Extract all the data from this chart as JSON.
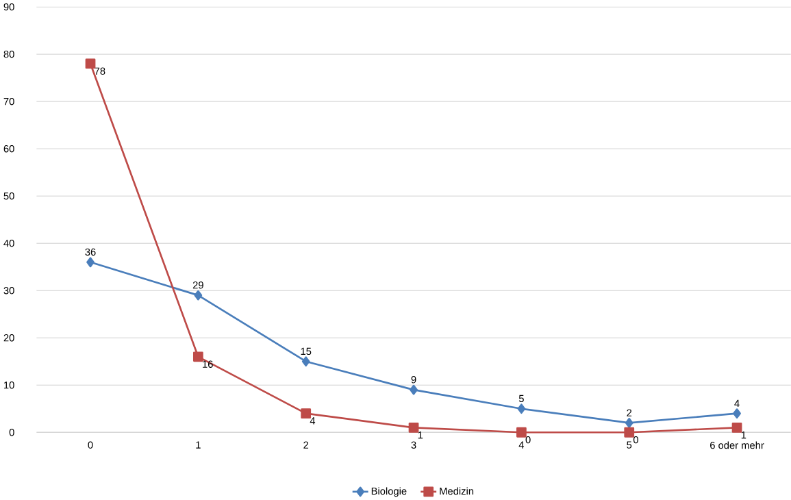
{
  "chart_data": {
    "type": "line",
    "categories": [
      "0",
      "1",
      "2",
      "3",
      "4",
      "5",
      "6 oder mehr"
    ],
    "series": [
      {
        "name": "Biologie",
        "color": "#4a7ebb",
        "marker": "diamond",
        "values": [
          36,
          29,
          15,
          9,
          5,
          2,
          4
        ]
      },
      {
        "name": "Medizin",
        "color": "#be4b48",
        "marker": "square",
        "values": [
          78,
          16,
          4,
          1,
          0,
          0,
          1
        ]
      }
    ],
    "ylim": [
      0,
      90
    ],
    "yticks": [
      0,
      10,
      20,
      30,
      40,
      50,
      60,
      70,
      80,
      90
    ],
    "grid": "y",
    "legend": "bottom",
    "data_labels": true,
    "line_style": "solid"
  }
}
